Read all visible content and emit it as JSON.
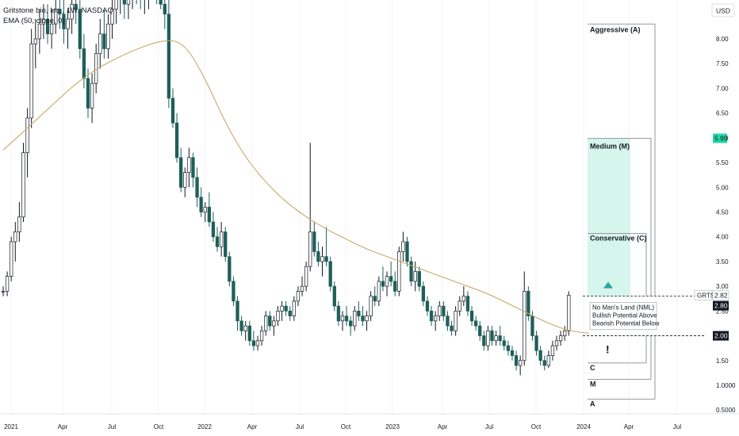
{
  "header": {
    "title": "Gritstone bio, Inc., 1W, NASDAQ",
    "indicator": "EMA (50, close, 0)"
  },
  "currency": "USD",
  "ticker": "GRTS",
  "colors": {
    "up": "#ffffff",
    "up_border": "#131722",
    "down": "#1e5f5a",
    "ema": "#c8a86b",
    "zone": "#d6f5ec",
    "marker": "#26a69a",
    "text": "#131722",
    "grid": "#f0f3fa"
  },
  "zones": {
    "aggressive_label": "Aggressive (A)",
    "medium_label": "Medium (M)",
    "conservative_label": "Conservative (C)",
    "nml_title": "No Man's Land (NML)",
    "nml_line1": "Bullish Potential Above",
    "nml_line2": "Bearish Potential Below",
    "c_label": "C",
    "m_label": "M",
    "a_label": "A",
    "exclamation": "!"
  },
  "chart_data": {
    "type": "candlestick",
    "title": "Gritstone bio, Inc., 1W, NASDAQ",
    "indicator": "EMA (50, close, 0)",
    "ylabel": "USD",
    "ylim": [
      0.45,
      8.55
    ],
    "grid": false,
    "x_ticks": [
      "2021",
      "Apr",
      "Jul",
      "Oct",
      "2022",
      "Apr",
      "Jul",
      "Oct",
      "2023",
      "Apr",
      "Jul",
      "Oct",
      "2024",
      "Apr",
      "Jul"
    ],
    "y_ticks": [
      "8.00",
      "7.50",
      "7.00",
      "6.50",
      "6.00",
      "5.50",
      "5.00",
      "4.50",
      "4.00",
      "3.50",
      "3.00",
      "2.50",
      "2.00",
      "1.50",
      "1.0000",
      "0.5000"
    ],
    "price_labels": {
      "ticker": "GRTS",
      "last": "2.82",
      "nml_top": "2.80",
      "nml_bottom": "2.00",
      "target": "5.99"
    },
    "levels": {
      "aggressive_target": 8.3,
      "medium_target": 5.99,
      "conservative_target": 4.07,
      "nml_top": 2.8,
      "nml_bottom": 2.0,
      "c_stop": 1.45,
      "m_stop": 1.12,
      "a_stop": 0.72
    },
    "candles": [
      [
        2.9,
        3.0,
        2.8,
        2.9
      ],
      [
        2.9,
        3.3,
        2.8,
        3.2
      ],
      [
        3.2,
        4.0,
        3.1,
        3.9
      ],
      [
        3.9,
        4.3,
        3.5,
        4.1
      ],
      [
        4.1,
        4.7,
        3.9,
        4.4
      ],
      [
        4.4,
        5.9,
        4.3,
        5.7
      ],
      [
        5.7,
        6.6,
        5.2,
        6.4
      ],
      [
        6.4,
        8.2,
        6.2,
        7.9
      ],
      [
        7.9,
        8.4,
        7.4,
        8.0
      ],
      [
        8.0,
        8.6,
        7.7,
        8.3
      ],
      [
        8.3,
        8.7,
        8.0,
        8.4
      ],
      [
        8.4,
        8.7,
        7.9,
        8.1
      ],
      [
        8.1,
        8.6,
        7.8,
        8.3
      ],
      [
        8.3,
        8.8,
        8.1,
        8.6
      ],
      [
        8.6,
        8.9,
        8.2,
        8.5
      ],
      [
        8.5,
        8.8,
        7.9,
        8.2
      ],
      [
        8.2,
        8.6,
        7.8,
        8.4
      ],
      [
        8.4,
        8.9,
        8.1,
        8.7
      ],
      [
        8.7,
        9.0,
        8.3,
        8.6
      ],
      [
        8.6,
        8.8,
        7.6,
        7.8
      ],
      [
        7.8,
        8.1,
        7.0,
        7.2
      ],
      [
        7.2,
        7.4,
        6.4,
        6.6
      ],
      [
        6.6,
        7.3,
        6.3,
        7.1
      ],
      [
        7.1,
        7.9,
        6.9,
        7.7
      ],
      [
        7.7,
        8.4,
        7.4,
        8.1
      ],
      [
        8.1,
        8.6,
        7.6,
        7.8
      ],
      [
        7.8,
        8.5,
        7.6,
        8.3
      ],
      [
        8.3,
        8.9,
        8.0,
        8.6
      ],
      [
        8.6,
        9.0,
        8.3,
        8.8
      ],
      [
        8.8,
        9.1,
        8.5,
        8.9
      ],
      [
        8.9,
        9.2,
        8.4,
        8.7
      ],
      [
        8.7,
        9.0,
        8.4,
        8.8
      ],
      [
        8.8,
        9.1,
        8.6,
        9.0
      ],
      [
        9.0,
        9.3,
        8.7,
        8.9
      ],
      [
        8.9,
        9.2,
        8.6,
        8.8
      ],
      [
        8.8,
        9.1,
        8.5,
        8.9
      ],
      [
        8.9,
        9.2,
        8.6,
        9.1
      ],
      [
        9.1,
        9.3,
        8.8,
        9.0
      ],
      [
        9.0,
        9.2,
        8.7,
        8.9
      ],
      [
        8.9,
        9.1,
        8.6,
        8.7
      ],
      [
        8.7,
        9.0,
        8.2,
        8.5
      ],
      [
        8.5,
        8.8,
        6.6,
        6.8
      ],
      [
        6.8,
        7.0,
        6.2,
        6.3
      ],
      [
        6.3,
        6.5,
        5.5,
        5.6
      ],
      [
        5.6,
        5.8,
        4.9,
        5.0
      ],
      [
        5.0,
        5.4,
        4.8,
        5.3
      ],
      [
        5.3,
        5.8,
        5.0,
        5.6
      ],
      [
        5.6,
        5.7,
        5.0,
        5.2
      ],
      [
        5.2,
        5.4,
        4.6,
        4.8
      ],
      [
        4.8,
        5.0,
        4.4,
        4.5
      ],
      [
        4.5,
        4.7,
        4.3,
        4.6
      ],
      [
        4.6,
        4.9,
        4.2,
        4.3
      ],
      [
        4.3,
        4.5,
        3.9,
        4.0
      ],
      [
        4.0,
        4.2,
        3.7,
        3.8
      ],
      [
        3.8,
        4.3,
        3.6,
        4.1
      ],
      [
        4.1,
        4.2,
        3.5,
        3.6
      ],
      [
        3.6,
        3.7,
        3.0,
        3.1
      ],
      [
        3.1,
        3.2,
        2.6,
        2.7
      ],
      [
        2.7,
        2.8,
        2.1,
        2.3
      ],
      [
        2.3,
        2.4,
        2.0,
        2.1
      ],
      [
        2.1,
        2.3,
        1.9,
        2.2
      ],
      [
        2.2,
        2.3,
        1.8,
        1.9
      ],
      [
        1.9,
        2.1,
        1.7,
        1.8
      ],
      [
        1.8,
        2.0,
        1.7,
        1.9
      ],
      [
        1.9,
        2.2,
        1.8,
        2.1
      ],
      [
        2.1,
        2.5,
        2.0,
        2.4
      ],
      [
        2.4,
        2.5,
        2.1,
        2.2
      ],
      [
        2.2,
        2.4,
        2.0,
        2.3
      ],
      [
        2.3,
        2.6,
        2.2,
        2.5
      ],
      [
        2.5,
        2.7,
        2.3,
        2.6
      ],
      [
        2.6,
        2.7,
        2.4,
        2.5
      ],
      [
        2.5,
        2.6,
        2.3,
        2.4
      ],
      [
        2.4,
        2.8,
        2.3,
        2.7
      ],
      [
        2.7,
        3.0,
        2.6,
        2.9
      ],
      [
        2.9,
        3.2,
        2.8,
        3.0
      ],
      [
        3.0,
        3.5,
        2.9,
        3.4
      ],
      [
        3.4,
        5.9,
        3.3,
        4.1
      ],
      [
        4.1,
        4.3,
        3.6,
        3.7
      ],
      [
        3.7,
        3.9,
        3.4,
        3.5
      ],
      [
        3.5,
        3.8,
        3.2,
        3.6
      ],
      [
        3.6,
        4.2,
        3.4,
        3.5
      ],
      [
        3.5,
        3.6,
        2.9,
        3.0
      ],
      [
        3.0,
        3.1,
        2.5,
        2.6
      ],
      [
        2.6,
        2.7,
        2.2,
        2.3
      ],
      [
        2.3,
        2.5,
        2.1,
        2.4
      ],
      [
        2.4,
        2.6,
        2.2,
        2.3
      ],
      [
        2.3,
        2.4,
        2.0,
        2.2
      ],
      [
        2.2,
        2.6,
        2.1,
        2.5
      ],
      [
        2.5,
        2.7,
        2.3,
        2.4
      ],
      [
        2.4,
        2.6,
        2.2,
        2.3
      ],
      [
        2.3,
        2.5,
        2.1,
        2.4
      ],
      [
        2.4,
        2.9,
        2.3,
        2.8
      ],
      [
        2.8,
        3.0,
        2.6,
        2.7
      ],
      [
        2.7,
        3.2,
        2.6,
        3.1
      ],
      [
        3.1,
        3.4,
        2.9,
        3.0
      ],
      [
        3.0,
        3.3,
        2.8,
        3.2
      ],
      [
        3.2,
        3.5,
        3.0,
        3.1
      ],
      [
        3.1,
        3.3,
        2.8,
        2.9
      ],
      [
        2.9,
        3.8,
        2.8,
        3.7
      ],
      [
        3.7,
        4.1,
        3.5,
        3.9
      ],
      [
        3.9,
        4.0,
        3.4,
        3.5
      ],
      [
        3.5,
        3.6,
        3.0,
        3.1
      ],
      [
        3.1,
        3.5,
        2.9,
        3.3
      ],
      [
        3.3,
        3.4,
        2.9,
        3.0
      ],
      [
        3.0,
        3.1,
        2.6,
        2.7
      ],
      [
        2.7,
        2.8,
        2.4,
        2.5
      ],
      [
        2.5,
        2.6,
        2.2,
        2.3
      ],
      [
        2.3,
        2.5,
        2.1,
        2.4
      ],
      [
        2.4,
        2.7,
        2.3,
        2.6
      ],
      [
        2.6,
        2.7,
        2.3,
        2.4
      ],
      [
        2.4,
        2.5,
        2.1,
        2.2
      ],
      [
        2.2,
        2.3,
        2.0,
        2.1
      ],
      [
        2.1,
        2.6,
        2.0,
        2.5
      ],
      [
        2.5,
        2.8,
        2.4,
        2.7
      ],
      [
        2.7,
        3.0,
        2.6,
        2.8
      ],
      [
        2.8,
        2.9,
        2.4,
        2.5
      ],
      [
        2.5,
        2.6,
        2.2,
        2.3
      ],
      [
        2.3,
        2.4,
        2.1,
        2.2
      ],
      [
        2.2,
        2.3,
        1.9,
        2.0
      ],
      [
        2.0,
        2.1,
        1.7,
        1.8
      ],
      [
        1.8,
        2.2,
        1.7,
        2.1
      ],
      [
        2.1,
        2.2,
        1.8,
        1.9
      ],
      [
        1.9,
        2.1,
        1.8,
        2.0
      ],
      [
        2.0,
        2.2,
        1.8,
        1.9
      ],
      [
        1.9,
        2.0,
        1.7,
        1.8
      ],
      [
        1.8,
        1.9,
        1.6,
        1.7
      ],
      [
        1.7,
        1.8,
        1.5,
        1.6
      ],
      [
        1.6,
        1.7,
        1.3,
        1.4
      ],
      [
        1.4,
        1.6,
        1.2,
        1.5
      ],
      [
        1.5,
        3.3,
        1.4,
        2.9
      ],
      [
        2.9,
        3.0,
        2.3,
        2.4
      ],
      [
        2.4,
        2.5,
        1.9,
        2.0
      ],
      [
        2.0,
        2.1,
        1.6,
        1.7
      ],
      [
        1.7,
        1.8,
        1.4,
        1.5
      ],
      [
        1.5,
        1.6,
        1.3,
        1.4
      ],
      [
        1.4,
        1.7,
        1.35,
        1.6
      ],
      [
        1.6,
        1.9,
        1.5,
        1.8
      ],
      [
        1.8,
        2.0,
        1.7,
        1.9
      ],
      [
        1.9,
        2.1,
        1.8,
        2.0
      ],
      [
        2.0,
        2.2,
        1.9,
        2.1
      ],
      [
        2.1,
        2.9,
        2.0,
        2.82
      ]
    ],
    "ema50": [
      [
        0,
        5.75
      ],
      [
        10,
        6.5
      ],
      [
        20,
        7.25
      ],
      [
        30,
        7.7
      ],
      [
        40,
        8.0
      ],
      [
        45,
        7.9
      ],
      [
        50,
        7.2
      ],
      [
        55,
        6.3
      ],
      [
        60,
        5.6
      ],
      [
        65,
        5.1
      ],
      [
        70,
        4.7
      ],
      [
        75,
        4.4
      ],
      [
        80,
        4.15
      ],
      [
        85,
        3.95
      ],
      [
        90,
        3.75
      ],
      [
        95,
        3.6
      ],
      [
        100,
        3.45
      ],
      [
        105,
        3.3
      ],
      [
        110,
        3.15
      ],
      [
        115,
        3.0
      ],
      [
        120,
        2.85
      ],
      [
        125,
        2.65
      ],
      [
        130,
        2.45
      ],
      [
        135,
        2.25
      ],
      [
        140,
        2.1
      ],
      [
        145,
        2.05
      ]
    ]
  }
}
